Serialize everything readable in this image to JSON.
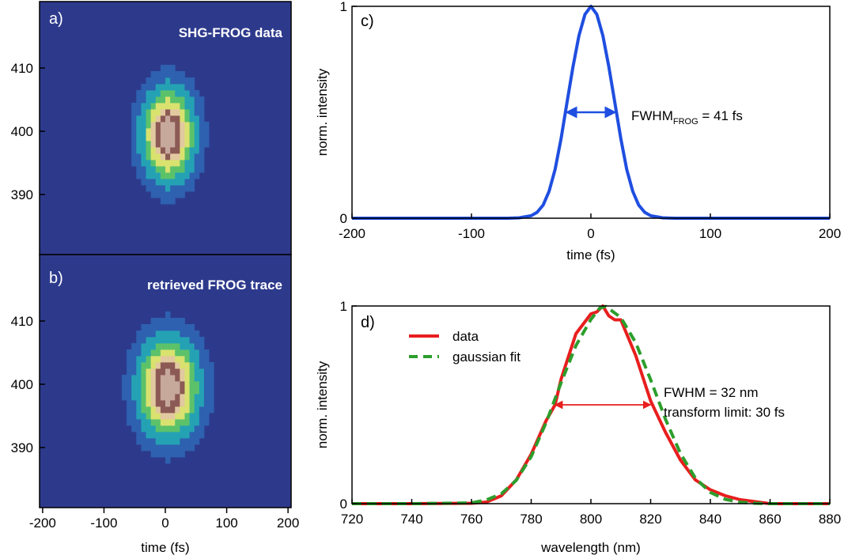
{
  "figure": {
    "time_xlabel": "time (fs)"
  },
  "chart_data": [
    {
      "id": "a",
      "type": "heatmap",
      "panel_label": "a)",
      "title": "SHG-FROG data",
      "x": {
        "label": "time (fs)",
        "lim": [
          -205,
          205
        ],
        "ticks": [
          -200,
          -100,
          0,
          100,
          200
        ]
      },
      "y": {
        "label": "",
        "lim": [
          380.5,
          420.5
        ],
        "ticks": [
          390,
          400,
          410
        ]
      },
      "peak": {
        "time_fs": 5,
        "wavelength_nm": 399.5
      },
      "spread": {
        "time_fs": 26,
        "wavelength_nm": 4.4
      },
      "grid": false,
      "colormap": [
        "#2d3a8c",
        "#2e61b0",
        "#24a2b4",
        "#5cc26a",
        "#d9e26e",
        "#e2c9a0",
        "#8c5a54",
        "#c7a99c",
        "#ffffff"
      ]
    },
    {
      "id": "b",
      "type": "heatmap",
      "panel_label": "b)",
      "title": "retrieved FROG trace",
      "x": {
        "label": "time (fs)",
        "lim": [
          -205,
          205
        ],
        "ticks": [
          -200,
          -100,
          0,
          100,
          200
        ]
      },
      "y": {
        "label": "",
        "lim": [
          380.5,
          420.5
        ],
        "ticks": [
          390,
          400,
          410
        ]
      },
      "peak": {
        "time_fs": 5,
        "wavelength_nm": 399.5
      },
      "spread": {
        "time_fs": 30,
        "wavelength_nm": 4.7
      },
      "grid": false
    },
    {
      "id": "c",
      "type": "line",
      "panel_label": "c)",
      "x": {
        "label": "time (fs)",
        "lim": [
          -200,
          200
        ],
        "ticks": [
          -200,
          -100,
          0,
          100,
          200
        ]
      },
      "y": {
        "label": "norm. intensity",
        "lim": [
          0,
          1
        ],
        "ticks": [
          0,
          1
        ]
      },
      "series": [
        {
          "color": "#1f4ee0",
          "x": [
            -200,
            -100,
            -70,
            -60,
            -50,
            -45,
            -40,
            -35,
            -30,
            -25,
            -20,
            -15,
            -10,
            -5,
            0,
            5,
            10,
            15,
            20,
            25,
            30,
            35,
            40,
            45,
            50,
            60,
            70,
            100,
            200
          ],
          "y": [
            0,
            0,
            0.0,
            0.002,
            0.012,
            0.028,
            0.062,
            0.127,
            0.23,
            0.376,
            0.547,
            0.716,
            0.862,
            0.962,
            1.0,
            0.962,
            0.862,
            0.716,
            0.547,
            0.376,
            0.23,
            0.127,
            0.062,
            0.028,
            0.012,
            0.002,
            0.0,
            0,
            0
          ]
        }
      ],
      "annotation": {
        "text_main": "FWHM",
        "text_sub": "FROG",
        "text_tail": " = 41 fs",
        "fwhm_fs": 41,
        "level": 0.5,
        "arrow_color": "#1f4ee0"
      },
      "grid": false
    },
    {
      "id": "d",
      "type": "line",
      "panel_label": "d)",
      "x": {
        "label": "wavelength (nm)",
        "lim": [
          720,
          880
        ],
        "ticks": [
          720,
          740,
          760,
          780,
          800,
          820,
          840,
          860,
          880
        ]
      },
      "y": {
        "label": "norm. intensity",
        "lim": [
          0,
          1
        ],
        "ticks": [
          0,
          1
        ]
      },
      "series": [
        {
          "name": "data",
          "color": "#e81e1e",
          "style": "solid",
          "x": [
            720,
            740,
            760,
            765,
            770,
            775,
            780,
            785,
            788,
            790,
            795,
            800,
            802,
            804,
            806,
            808,
            810,
            815,
            820,
            825,
            830,
            835,
            840,
            845,
            850,
            855,
            860,
            870,
            880
          ],
          "y": [
            0.0,
            0.0,
            0.002,
            0.008,
            0.04,
            0.12,
            0.25,
            0.42,
            0.5,
            0.63,
            0.86,
            0.96,
            0.97,
            1.0,
            0.95,
            0.93,
            0.93,
            0.75,
            0.52,
            0.36,
            0.22,
            0.12,
            0.07,
            0.04,
            0.02,
            0.01,
            0.0,
            0.0,
            0.0
          ]
        },
        {
          "name": "gaussian fit",
          "color": "#2c9e2c",
          "style": "dashed",
          "x": [
            720,
            740,
            760,
            765,
            770,
            775,
            780,
            785,
            790,
            795,
            800,
            803,
            805,
            810,
            815,
            820,
            825,
            830,
            835,
            840,
            845,
            850,
            855,
            860,
            870,
            880
          ],
          "y": [
            0.0,
            0.0,
            0.004,
            0.019,
            0.05,
            0.118,
            0.238,
            0.41,
            0.612,
            0.8,
            0.932,
            0.99,
            0.998,
            0.942,
            0.815,
            0.627,
            0.426,
            0.253,
            0.129,
            0.057,
            0.022,
            0.007,
            0.002,
            0.0,
            0.0,
            0.0
          ]
        }
      ],
      "annotation": {
        "line1": "FWHM = 32 nm",
        "line2": "transform limit: 30 fs",
        "fwhm_from": 788,
        "fwhm_to": 820,
        "level": 0.5,
        "arrow_color": "#e81e1e"
      },
      "legend": {
        "placement": "top-left",
        "entries": [
          "data",
          "gaussian fit"
        ]
      },
      "grid": false
    }
  ]
}
